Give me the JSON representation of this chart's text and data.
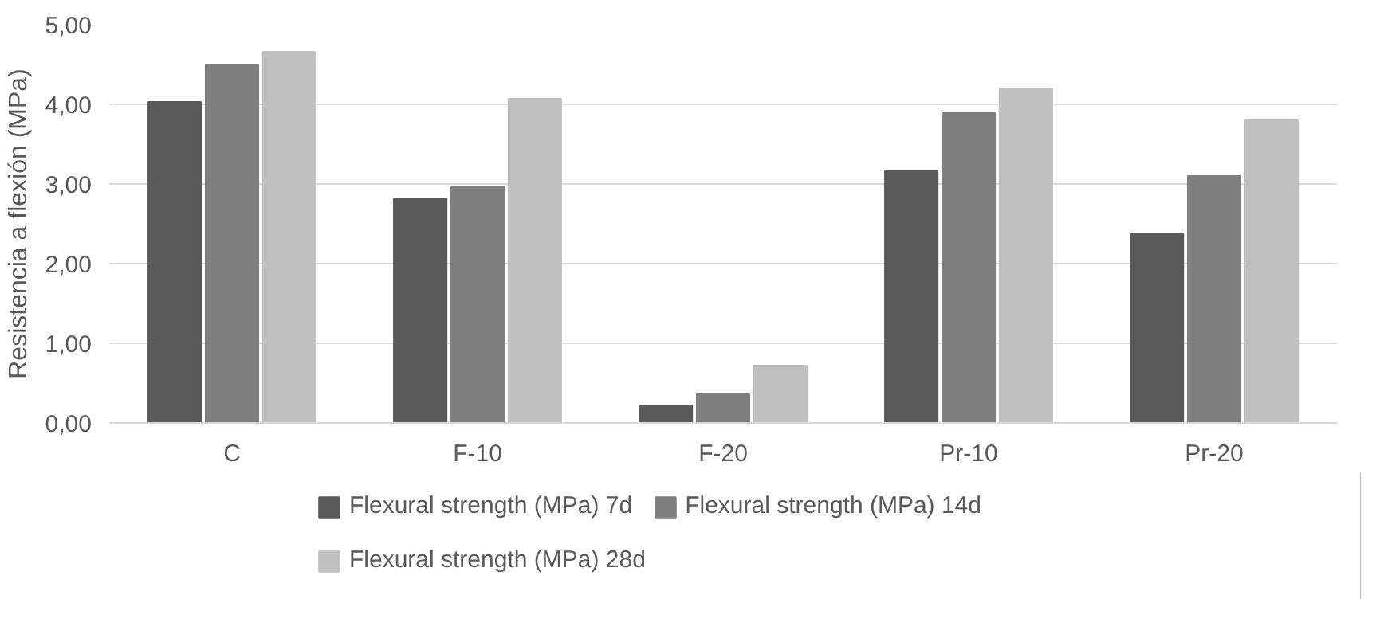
{
  "chart_data": {
    "type": "bar",
    "ylabel": "Resistencia a flexión (MPa)",
    "categories": [
      "C",
      "F-10",
      "F-20",
      "Pr-10",
      "Pr-20"
    ],
    "series": [
      {
        "name": "Flexural strength (MPa) 7d",
        "color": "#595959",
        "values": [
          4.03,
          2.82,
          0.22,
          3.17,
          2.37
        ]
      },
      {
        "name": "Flexural strength (MPa) 14d",
        "color": "#7f7f7f",
        "values": [
          4.5,
          2.97,
          0.36,
          3.89,
          3.1
        ]
      },
      {
        "name": "Flexural strength (MPa) 28d",
        "color": "#bfbfbf",
        "values": [
          4.66,
          4.07,
          0.72,
          4.2,
          3.8
        ]
      }
    ],
    "ylim": [
      0,
      5
    ],
    "yticks": [
      {
        "value": 0,
        "label": "0,00"
      },
      {
        "value": 1,
        "label": "1,00"
      },
      {
        "value": 2,
        "label": "2,00"
      },
      {
        "value": 3,
        "label": "3,00"
      },
      {
        "value": 4,
        "label": "4,00"
      },
      {
        "value": 5,
        "label": "5,00"
      }
    ],
    "grid": "y",
    "legend": "bottom"
  }
}
